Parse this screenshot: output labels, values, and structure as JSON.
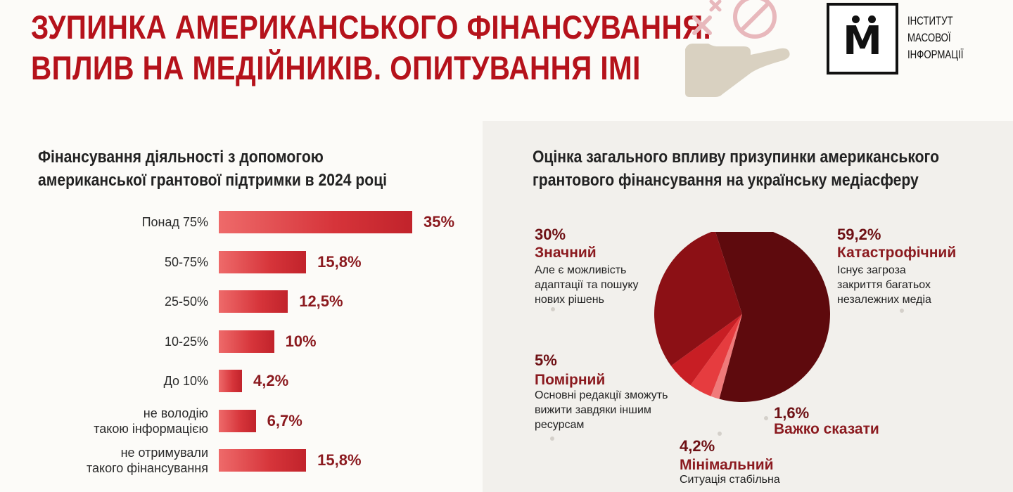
{
  "header": {
    "title_lines": [
      "ЗУПИНКА АМЕРИКАНСЬКОГО ФІНАНСУВАННЯ.",
      "ВПЛИВ НА МЕДІЙНИКІВ. ОПИТУВАННЯ ІМІ"
    ],
    "logo_letter": "M",
    "logo_text_lines": [
      "ІНСТИТУТ",
      "МАСОВОЇ",
      "ІНФОРМАЦІЇ"
    ],
    "illustration": "hand-with-cross-and-forbidden-sign-icon"
  },
  "colors": {
    "title": "#b5121b",
    "bar": "#d6343a",
    "pie_catastrophic": "#5e0a0d",
    "pie_significant": "#8c1015",
    "pie_moderate": "#c81e24",
    "pie_minimal": "#e63c3f",
    "pie_hard_to_say": "#f07a7a"
  },
  "chart_data": [
    {
      "type": "bar",
      "orientation": "horizontal",
      "title_lines": [
        "Фінансування діяльності з допомогою",
        "американської грантової підтримки в 2024 році"
      ],
      "categories": [
        [
          "Понад 75%"
        ],
        [
          "50-75%"
        ],
        [
          "25-50%"
        ],
        [
          "10-25%"
        ],
        [
          "До 10%"
        ],
        [
          "не володію",
          "такою інформацією"
        ],
        [
          "не отримували",
          "такого фінансування"
        ]
      ],
      "values": [
        35,
        15.8,
        12.5,
        10,
        4.2,
        6.7,
        15.8
      ],
      "value_labels": [
        "35%",
        "15,8%",
        "12,5%",
        "10%",
        "4,2%",
        "6,7%",
        "15,8%"
      ]
    },
    {
      "type": "pie",
      "title_lines": [
        "Оцінка загального впливу призупинки американського",
        "грантового фінансування на українську медіасферу"
      ],
      "slices": [
        {
          "label": "Катастрофічний",
          "value": 59.2,
          "value_label": "59,2%",
          "desc": [
            "Існує загроза",
            "закриття багатьох",
            "незалежних медіа"
          ]
        },
        {
          "label": "Важко сказати",
          "value": 1.6,
          "value_label": "1,6%",
          "desc": []
        },
        {
          "label": "Мінімальний",
          "value": 4.2,
          "value_label": "4,2%",
          "desc": [
            "Ситуація стабільна"
          ]
        },
        {
          "label": "Помірний",
          "value": 5,
          "value_label": "5%",
          "desc": [
            "Основні редакції зможуть",
            "вижити завдяки іншим",
            "ресурсам"
          ]
        },
        {
          "label": "Значний",
          "value": 30,
          "value_label": "30%",
          "desc": [
            "Але є можливість",
            "адаптації та пошуку",
            "нових рішень"
          ]
        }
      ]
    }
  ]
}
